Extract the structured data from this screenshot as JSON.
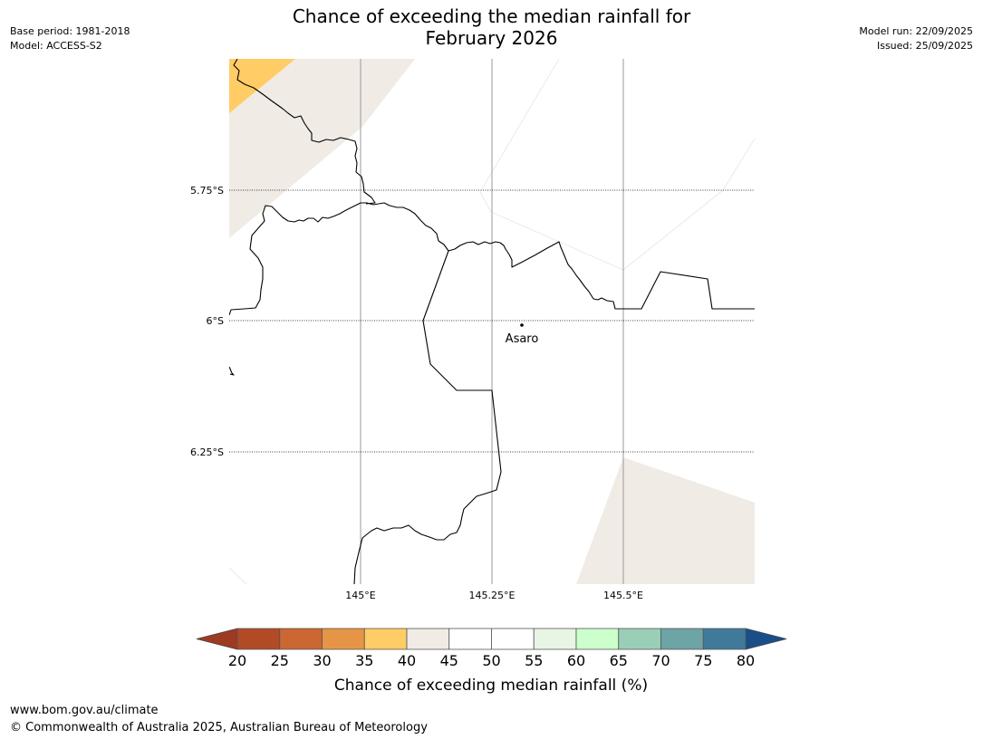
{
  "title": {
    "line1": "Chance of exceeding the median rainfall for",
    "line2": "February 2026"
  },
  "meta": {
    "base_period": "Base period: 1981-2018",
    "model": "Model: ACCESS-S2",
    "model_run": "Model run: 22/09/2025",
    "issued": "Issued: 25/09/2025"
  },
  "map": {
    "lat_labels": [
      "5.75°S",
      "6°S",
      "6.25°S"
    ],
    "lon_labels": [
      "145°E",
      "145.25°E",
      "145.5°E"
    ],
    "place": "Asaro",
    "colors": {
      "p35_40": "#FFCC66",
      "p40_45": "#F0EBE4",
      "border": "#000000",
      "gridline": "#999999"
    }
  },
  "colorbar": {
    "ticks": [
      "20",
      "25",
      "30",
      "35",
      "40",
      "45",
      "50",
      "55",
      "60",
      "65",
      "70",
      "75",
      "80"
    ],
    "colors": [
      "#B34A26",
      "#CC6633",
      "#E69547",
      "#FFCC66",
      "#F0EBE4",
      "#FFFFFF",
      "#FFFFFF",
      "#E8F5E4",
      "#CCFFCC",
      "#9ACFB7",
      "#6DA4A5",
      "#3F7A9A"
    ],
    "under_color": "#9E3A22",
    "over_color": "#1A4E88",
    "label": "Chance of exceeding median rainfall (%)"
  },
  "footer": {
    "url": "www.bom.gov.au/climate",
    "copyright": "© Commonwealth of Australia 2025, Australian Bureau of Meteorology"
  }
}
